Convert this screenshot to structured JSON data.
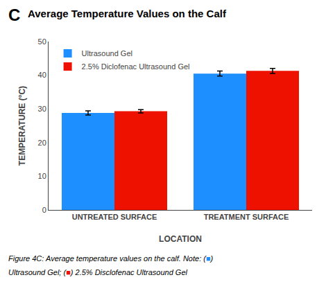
{
  "chart_data": {
    "type": "bar",
    "title": "Average Temperature Values on the Calf",
    "categories": [
      "UNTREATED SURFACE",
      "TREATMENT SURFACE"
    ],
    "series": [
      {
        "name": "Ultrasound Gel",
        "color": "#1e8fff",
        "values": [
          28.8,
          40.5
        ],
        "errors": [
          0.6,
          0.75
        ]
      },
      {
        "name": "2.5% Diclofenac Ultrasound Gel",
        "color": "#ee1100",
        "values": [
          29.3,
          41.3
        ],
        "errors": [
          0.5,
          0.75
        ]
      }
    ],
    "xlabel": "LOCATION",
    "ylabel": "TEMPERATURE (°C)",
    "ylim": [
      0,
      50
    ],
    "yticks": [
      0,
      10,
      20,
      30,
      40,
      50
    ],
    "grid": false,
    "legend": "upper left",
    "annotations": [
      "C",
      "Figure 4C: Average temperature values on the calf. Note: (■)",
      "Ultrasound Gel; (■) 2.5% Disclofenac Ultrasound Gel"
    ]
  }
}
